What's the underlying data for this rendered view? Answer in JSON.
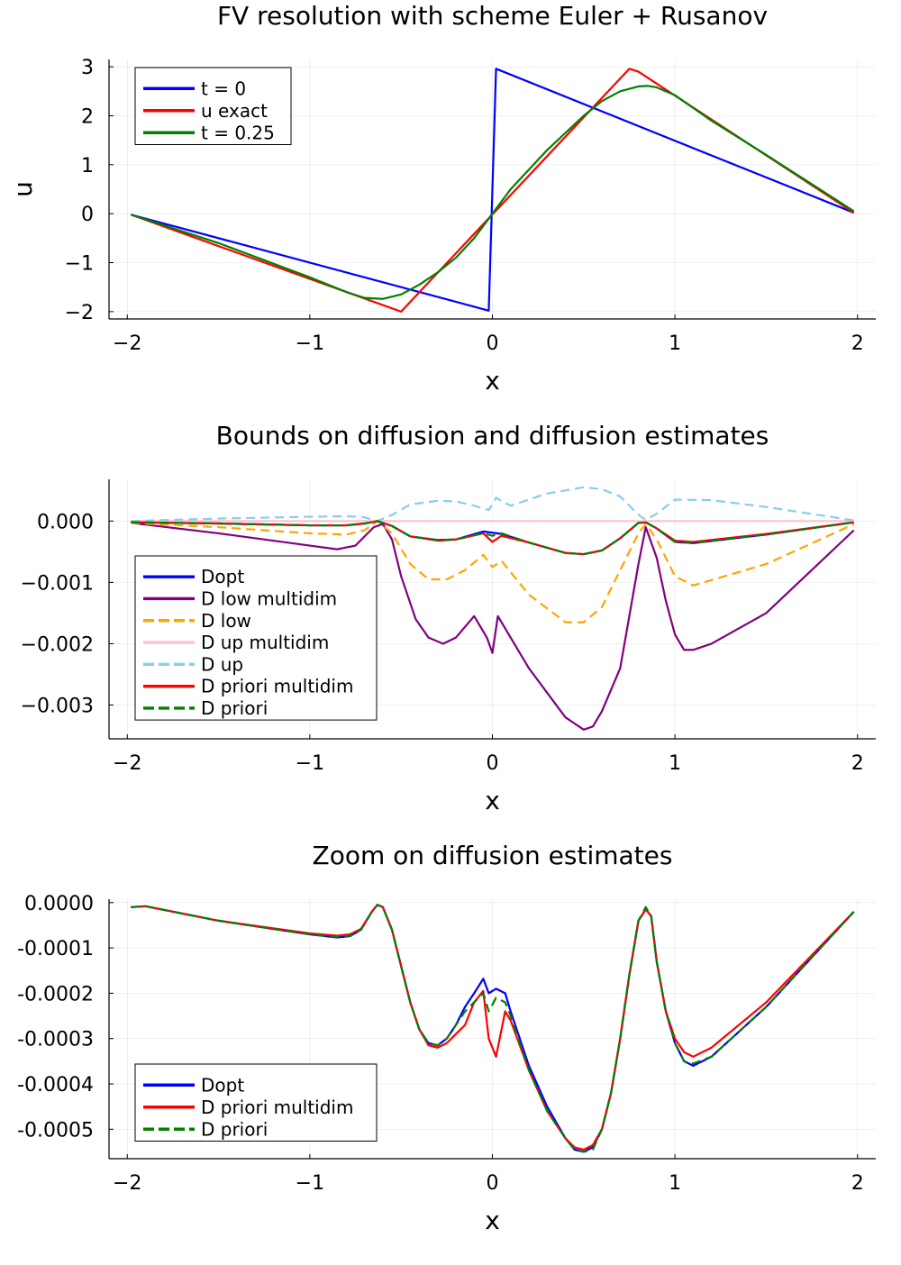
{
  "chart_data": [
    {
      "type": "line",
      "title": "FV resolution with scheme Euler + Rusanov",
      "xlabel": "x",
      "ylabel": "u",
      "xlim": [
        -2.1,
        2.1
      ],
      "ylim": [
        -2.15,
        3.15
      ],
      "xticks": [
        -2,
        -1,
        0,
        1,
        2
      ],
      "xtick_labels": [
        "−2",
        "−1",
        "0",
        "1",
        "2"
      ],
      "yticks": [
        -2,
        -1,
        0,
        1,
        2,
        3
      ],
      "ytick_labels": [
        "−2",
        "−1",
        "0",
        "1",
        "2",
        "3"
      ],
      "grid": true,
      "legend": "top-left",
      "series": [
        {
          "name": "t = 0",
          "color": "#0000ff",
          "dash": false,
          "x": [
            -1.98,
            -0.02,
            0.02,
            1.98
          ],
          "y": [
            -0.02,
            -1.98,
            2.96,
            0.02
          ]
        },
        {
          "name": "u exact",
          "color": "#ff0000",
          "dash": false,
          "x": [
            -1.98,
            -0.5,
            0.75,
            0.8,
            1.98
          ],
          "y": [
            -0.02,
            -2.0,
            2.96,
            2.9,
            0.02
          ]
        },
        {
          "name": "t = 0.25",
          "color": "#008000",
          "dash": false,
          "x": [
            -1.98,
            -1.5,
            -1.0,
            -0.8,
            -0.7,
            -0.6,
            -0.5,
            -0.4,
            -0.3,
            -0.2,
            -0.1,
            0.0,
            0.1,
            0.2,
            0.3,
            0.4,
            0.5,
            0.6,
            0.7,
            0.8,
            0.85,
            0.9,
            1.0,
            1.2,
            1.5,
            1.98
          ],
          "y": [
            -0.02,
            -0.6,
            -1.3,
            -1.6,
            -1.72,
            -1.74,
            -1.65,
            -1.45,
            -1.2,
            -0.9,
            -0.5,
            0.0,
            0.5,
            0.9,
            1.3,
            1.65,
            2.0,
            2.3,
            2.5,
            2.6,
            2.61,
            2.58,
            2.42,
            1.9,
            1.2,
            0.05
          ]
        }
      ]
    },
    {
      "type": "line",
      "title": "Bounds on diffusion and diffusion estimates",
      "xlabel": "x",
      "ylabel": "",
      "xlim": [
        -2.1,
        2.1
      ],
      "ylim": [
        -0.00355,
        0.00068
      ],
      "xticks": [
        -2,
        -1,
        0,
        1,
        2
      ],
      "xtick_labels": [
        "−2",
        "−1",
        "0",
        "1",
        "2"
      ],
      "yticks": [
        0.0,
        -0.001,
        -0.002,
        -0.003
      ],
      "ytick_labels": [
        "0.000",
        "−0.001",
        "−0.002",
        "−0.003"
      ],
      "grid": true,
      "legend": "bottom-left",
      "series": [
        {
          "name": "Dopt",
          "color": "#0000ff",
          "dash": false,
          "x": [
            -1.98,
            -1.5,
            -1.0,
            -0.8,
            -0.7,
            -0.63,
            -0.55,
            -0.45,
            -0.3,
            -0.2,
            -0.05,
            0.0,
            0.05,
            0.2,
            0.4,
            0.5,
            0.6,
            0.7,
            0.8,
            0.84,
            0.9,
            1.0,
            1.1,
            1.5,
            1.98
          ],
          "y": [
            -2e-05,
            -4e-05,
            -7e-05,
            -7e-05,
            -4e-05,
            0.0,
            -8e-05,
            -0.00025,
            -0.00031,
            -0.0003,
            -0.00017,
            -0.00019,
            -0.00021,
            -0.00035,
            -0.00052,
            -0.00054,
            -0.00048,
            -0.00028,
            -3e-05,
            -2e-05,
            -0.00012,
            -0.00034,
            -0.00036,
            -0.00022,
            -2e-05
          ]
        },
        {
          "name": "D low multidim",
          "color": "#800080",
          "dash": false,
          "x": [
            -1.98,
            -1.5,
            -1.0,
            -0.85,
            -0.75,
            -0.65,
            -0.6,
            -0.55,
            -0.5,
            -0.42,
            -0.35,
            -0.27,
            -0.2,
            -0.1,
            -0.03,
            0.0,
            0.03,
            0.1,
            0.2,
            0.3,
            0.4,
            0.5,
            0.55,
            0.6,
            0.7,
            0.8,
            0.84,
            0.9,
            0.95,
            1.0,
            1.05,
            1.1,
            1.2,
            1.5,
            1.98
          ],
          "y": [
            -3e-05,
            -0.0002,
            -0.0004,
            -0.00046,
            -0.0004,
            -0.0001,
            -5e-05,
            -0.0003,
            -0.0009,
            -0.0016,
            -0.0019,
            -0.002,
            -0.0019,
            -0.00155,
            -0.0019,
            -0.00215,
            -0.00155,
            -0.0019,
            -0.0024,
            -0.0028,
            -0.0032,
            -0.0034,
            -0.00335,
            -0.0031,
            -0.0024,
            -0.0007,
            -0.0001,
            -0.0006,
            -0.0013,
            -0.00185,
            -0.0021,
            -0.0021,
            -0.002,
            -0.0015,
            -0.00015
          ]
        },
        {
          "name": "D low",
          "color": "#ffa500",
          "dash": true,
          "x": [
            -1.98,
            -1.5,
            -1.0,
            -0.8,
            -0.7,
            -0.63,
            -0.55,
            -0.45,
            -0.35,
            -0.25,
            -0.15,
            -0.05,
            0.0,
            0.05,
            0.2,
            0.4,
            0.5,
            0.6,
            0.7,
            0.8,
            0.84,
            0.9,
            1.0,
            1.1,
            1.5,
            1.98
          ],
          "y": [
            -3e-05,
            -0.0001,
            -0.0002,
            -0.00022,
            -0.00015,
            0.0,
            -0.0002,
            -0.0007,
            -0.00095,
            -0.00095,
            -0.0008,
            -0.00055,
            -0.00075,
            -0.00065,
            -0.0012,
            -0.00165,
            -0.00165,
            -0.0014,
            -0.0008,
            -0.0002,
            -5e-05,
            -0.0003,
            -0.0009,
            -0.00105,
            -0.0007,
            -5e-05
          ]
        },
        {
          "name": "D up multidim",
          "color": "#ffc0cb",
          "dash": false,
          "x": [
            -1.98,
            1.98
          ],
          "y": [
            0.0,
            0.0
          ]
        },
        {
          "name": "D up",
          "color": "#87ceeb",
          "dash": true,
          "x": [
            -1.98,
            -1.5,
            -1.0,
            -0.8,
            -0.7,
            -0.63,
            -0.55,
            -0.45,
            -0.3,
            -0.2,
            -0.1,
            -0.02,
            0.02,
            0.1,
            0.3,
            0.5,
            0.6,
            0.7,
            0.8,
            0.84,
            0.9,
            1.0,
            1.2,
            1.5,
            1.98
          ],
          "y": [
            0.0,
            4e-05,
            7e-05,
            8e-05,
            6e-05,
            0.0,
            0.0001,
            0.00027,
            0.00033,
            0.00032,
            0.00025,
            0.00018,
            0.00038,
            0.00025,
            0.00045,
            0.00055,
            0.00052,
            0.0004,
            0.0001,
            2e-05,
            0.00012,
            0.00035,
            0.00034,
            0.00023,
            1e-05
          ]
        },
        {
          "name": "D priori multidim",
          "color": "#ff0000",
          "dash": false,
          "x": [
            -1.98,
            -1.5,
            -1.0,
            -0.8,
            -0.7,
            -0.63,
            -0.55,
            -0.45,
            -0.3,
            -0.2,
            -0.05,
            0.0,
            0.05,
            0.2,
            0.4,
            0.5,
            0.6,
            0.7,
            0.8,
            0.84,
            0.9,
            1.0,
            1.1,
            1.5,
            1.98
          ],
          "y": [
            -2e-05,
            -4e-05,
            -7e-05,
            -7e-05,
            -4e-05,
            0.0,
            -8e-05,
            -0.00025,
            -0.00032,
            -0.0003,
            -0.0002,
            -0.00034,
            -0.00024,
            -0.00035,
            -0.00052,
            -0.00054,
            -0.00048,
            -0.00028,
            -3e-05,
            -2e-05,
            -0.00012,
            -0.00032,
            -0.00034,
            -0.00021,
            -2e-05
          ]
        },
        {
          "name": "D priori",
          "color": "#008000",
          "dash": true,
          "x": [
            -1.98,
            -1.5,
            -1.0,
            -0.8,
            -0.7,
            -0.63,
            -0.55,
            -0.45,
            -0.3,
            -0.2,
            -0.05,
            0.0,
            0.05,
            0.2,
            0.4,
            0.5,
            0.6,
            0.7,
            0.8,
            0.84,
            0.9,
            1.0,
            1.1,
            1.5,
            1.98
          ],
          "y": [
            -2e-05,
            -4e-05,
            -7e-05,
            -7e-05,
            -4e-05,
            0.0,
            -8e-05,
            -0.00025,
            -0.00031,
            -0.0003,
            -0.0002,
            -0.00024,
            -0.0002,
            -0.00035,
            -0.00052,
            -0.00054,
            -0.00048,
            -0.00028,
            -3e-05,
            -2e-05,
            -0.00012,
            -0.00034,
            -0.00036,
            -0.00022,
            -2e-05
          ]
        }
      ]
    },
    {
      "type": "line",
      "title": "Zoom on diffusion estimates",
      "xlabel": "x",
      "ylabel": "",
      "xlim": [
        -2.1,
        2.1
      ],
      "ylim": [
        -0.000565,
        7.5e-06
      ],
      "xticks": [
        -2,
        -1,
        0,
        1,
        2
      ],
      "xtick_labels": [
        "−2",
        "−1",
        "0",
        "1",
        "2"
      ],
      "yticks": [
        0.0,
        -0.0001,
        -0.0002,
        -0.0003,
        -0.0004,
        -0.0005
      ],
      "ytick_labels": [
        "0.0000",
        "-0.0001",
        "-0.0002",
        "-0.0003",
        "-0.0004",
        "-0.0005"
      ],
      "grid": true,
      "legend": "bottom-left",
      "series": [
        {
          "name": "Dopt",
          "color": "#0000ff",
          "dash": false,
          "x": [
            -1.98,
            -1.9,
            -1.5,
            -1.0,
            -0.85,
            -0.78,
            -0.72,
            -0.66,
            -0.63,
            -0.6,
            -0.55,
            -0.5,
            -0.45,
            -0.4,
            -0.35,
            -0.3,
            -0.25,
            -0.2,
            -0.15,
            -0.1,
            -0.05,
            -0.02,
            0.02,
            0.07,
            0.1,
            0.2,
            0.3,
            0.4,
            0.45,
            0.5,
            0.55,
            0.6,
            0.65,
            0.7,
            0.75,
            0.8,
            0.84,
            0.87,
            0.9,
            0.95,
            1.0,
            1.05,
            1.1,
            1.2,
            1.5,
            1.98
          ],
          "y": [
            -1e-05,
            -8e-06,
            -4e-05,
            -7e-05,
            -7.7e-05,
            -7.4e-05,
            -6e-05,
            -2e-05,
            -5e-06,
            -1e-05,
            -6e-05,
            -0.00014,
            -0.00022,
            -0.00028,
            -0.00031,
            -0.000315,
            -0.0003,
            -0.00027,
            -0.00023,
            -0.0002,
            -0.000168,
            -0.0002,
            -0.00019,
            -0.0002,
            -0.00024,
            -0.00036,
            -0.00045,
            -0.00052,
            -0.000545,
            -0.00055,
            -0.00054,
            -0.0005,
            -0.00042,
            -0.0003,
            -0.00016,
            -4e-05,
            -1.5e-05,
            -3e-05,
            -0.00013,
            -0.00024,
            -0.00031,
            -0.00035,
            -0.00036,
            -0.00034,
            -0.00023,
            -2e-05
          ]
        },
        {
          "name": "D priori multidim",
          "color": "#ff0000",
          "dash": false,
          "x": [
            -1.98,
            -1.9,
            -1.5,
            -1.0,
            -0.85,
            -0.78,
            -0.72,
            -0.66,
            -0.63,
            -0.6,
            -0.55,
            -0.5,
            -0.45,
            -0.4,
            -0.35,
            -0.3,
            -0.25,
            -0.2,
            -0.15,
            -0.1,
            -0.05,
            -0.02,
            0.02,
            0.07,
            0.1,
            0.2,
            0.3,
            0.4,
            0.45,
            0.5,
            0.55,
            0.6,
            0.65,
            0.7,
            0.75,
            0.8,
            0.84,
            0.87,
            0.9,
            0.95,
            1.0,
            1.05,
            1.1,
            1.2,
            1.5,
            1.98
          ],
          "y": [
            -1e-05,
            -8e-06,
            -4e-05,
            -6.8e-05,
            -7.3e-05,
            -7e-05,
            -5.8e-05,
            -2e-05,
            -5e-06,
            -1e-05,
            -6e-05,
            -0.00014,
            -0.00022,
            -0.00028,
            -0.000315,
            -0.00032,
            -0.00031,
            -0.00029,
            -0.00027,
            -0.00022,
            -0.000195,
            -0.0003,
            -0.00034,
            -0.00024,
            -0.00026,
            -0.00037,
            -0.00046,
            -0.00052,
            -0.00054,
            -0.000545,
            -0.000535,
            -0.0005,
            -0.00042,
            -0.0003,
            -0.00016,
            -4e-05,
            -1.5e-05,
            -3e-05,
            -0.00013,
            -0.00024,
            -0.0003,
            -0.00033,
            -0.00034,
            -0.00032,
            -0.00022,
            -2e-05
          ]
        },
        {
          "name": "D priori",
          "color": "#008000",
          "dash": true,
          "x": [
            -1.98,
            -1.9,
            -1.5,
            -1.0,
            -0.85,
            -0.78,
            -0.72,
            -0.66,
            -0.63,
            -0.6,
            -0.55,
            -0.5,
            -0.45,
            -0.4,
            -0.35,
            -0.3,
            -0.25,
            -0.2,
            -0.15,
            -0.1,
            -0.05,
            -0.02,
            0.02,
            0.07,
            0.1,
            0.2,
            0.3,
            0.4,
            0.45,
            0.5,
            0.55,
            0.6,
            0.65,
            0.7,
            0.75,
            0.8,
            0.84,
            0.87,
            0.9,
            0.95,
            1.0,
            1.05,
            1.1,
            1.2,
            1.5,
            1.98
          ],
          "y": [
            -1e-05,
            -8e-06,
            -4e-05,
            -7e-05,
            -7.6e-05,
            -7.3e-05,
            -6e-05,
            -2e-05,
            -5e-06,
            -1e-05,
            -6e-05,
            -0.00014,
            -0.00022,
            -0.00028,
            -0.00031,
            -0.000315,
            -0.0003,
            -0.00027,
            -0.00024,
            -0.00022,
            -0.0002,
            -0.00024,
            -0.00021,
            -0.00022,
            -0.00025,
            -0.00037,
            -0.00046,
            -0.00052,
            -0.000545,
            -0.00055,
            -0.000545,
            -0.0005,
            -0.00042,
            -0.0003,
            -0.00016,
            -4e-05,
            -1e-05,
            -3e-05,
            -0.00013,
            -0.00024,
            -0.00031,
            -0.00035,
            -0.000355,
            -0.00034,
            -0.00023,
            -2e-05
          ]
        }
      ]
    }
  ]
}
